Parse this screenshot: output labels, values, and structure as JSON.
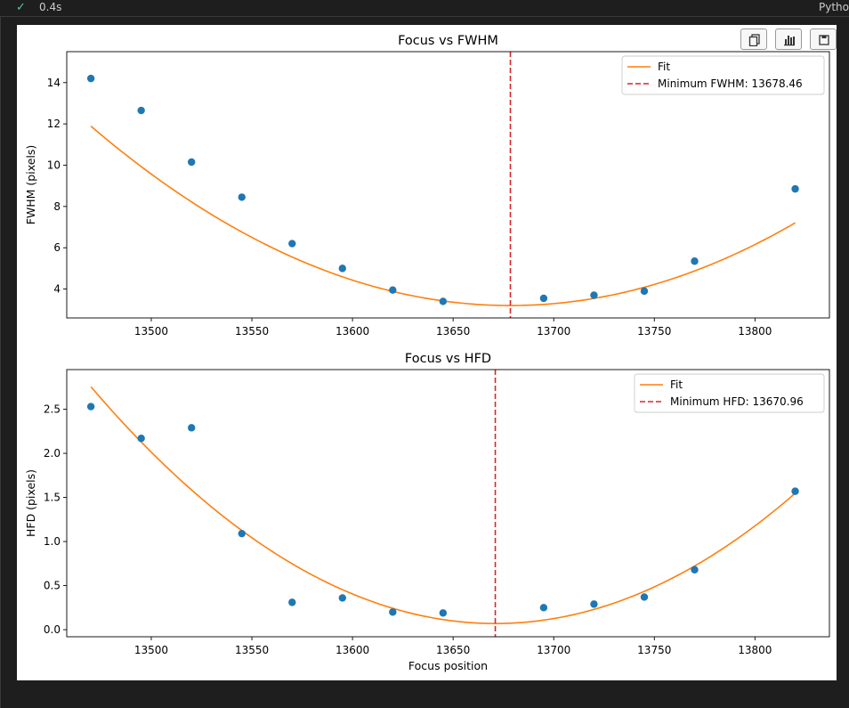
{
  "cell": {
    "status_icon": "check-icon",
    "elapsed": "0.4s",
    "language": "Pytho"
  },
  "toolbar": {
    "buttons": [
      "copy-icon",
      "bar-chart-icon",
      "save-icon"
    ]
  },
  "chart_data": [
    {
      "type": "scatter",
      "title": "Focus vs FWHM",
      "xlabel": "",
      "ylabel": "FWHM (pixels)",
      "xlim": [
        13458,
        13837
      ],
      "ylim": [
        2.6,
        15.5
      ],
      "xticks": [
        13500,
        13550,
        13600,
        13650,
        13700,
        13750,
        13800
      ],
      "xtick_labels": [
        "13500",
        "13550",
        "13600",
        "13650",
        "13700",
        "13750",
        "13800"
      ],
      "yticks": [
        4,
        6,
        8,
        10,
        12,
        14
      ],
      "ytick_labels": [
        "4",
        "6",
        "8",
        "10",
        "12",
        "14"
      ],
      "grid": false,
      "legend_position": "top-right",
      "points": {
        "x": [
          13470,
          13495,
          13520,
          13545,
          13570,
          13595,
          13620,
          13645,
          13695,
          13720,
          13745,
          13770,
          13820
        ],
        "y": [
          14.2,
          12.65,
          10.15,
          8.45,
          6.2,
          5.0,
          3.95,
          3.4,
          3.55,
          3.7,
          3.9,
          5.35,
          8.85
        ],
        "color": "#1f77b4"
      },
      "fit": {
        "name": "Fit",
        "color": "#ff7f0e",
        "vertex_x": 13678.46,
        "vertex_y": 3.2,
        "curvature": 0.0002,
        "x_range": [
          13470,
          13820
        ]
      },
      "vline": {
        "name": "Minimum FWHM: 13678.46",
        "x": 13678.46,
        "color": "#d62728"
      }
    },
    {
      "type": "scatter",
      "title": "Focus vs HFD",
      "xlabel": "Focus position",
      "ylabel": "HFD (pixels)",
      "xlim": [
        13458,
        13837
      ],
      "ylim": [
        -0.08,
        2.95
      ],
      "xticks": [
        13500,
        13550,
        13600,
        13650,
        13700,
        13750,
        13800
      ],
      "xtick_labels": [
        "13500",
        "13550",
        "13600",
        "13650",
        "13700",
        "13750",
        "13800"
      ],
      "yticks": [
        0.0,
        0.5,
        1.0,
        1.5,
        2.0,
        2.5
      ],
      "ytick_labels": [
        "0.0",
        "0.5",
        "1.0",
        "1.5",
        "2.0",
        "2.5"
      ],
      "grid": false,
      "legend_position": "top-right",
      "points": {
        "x": [
          13470,
          13495,
          13520,
          13545,
          13570,
          13595,
          13620,
          13645,
          13695,
          13720,
          13745,
          13770,
          13820
        ],
        "y": [
          2.53,
          2.17,
          2.29,
          1.09,
          0.31,
          0.36,
          0.2,
          0.19,
          0.25,
          0.29,
          0.37,
          0.68,
          1.57
        ],
        "color": "#1f77b4"
      },
      "fit": {
        "name": "Fit",
        "color": "#ff7f0e",
        "vertex_x": 13670.96,
        "vertex_y": 0.07,
        "curvature": 6.65e-05,
        "x_range": [
          13470,
          13820
        ]
      },
      "vline": {
        "name": "Minimum HFD: 13670.96",
        "x": 13670.96,
        "color": "#d62728"
      }
    }
  ]
}
